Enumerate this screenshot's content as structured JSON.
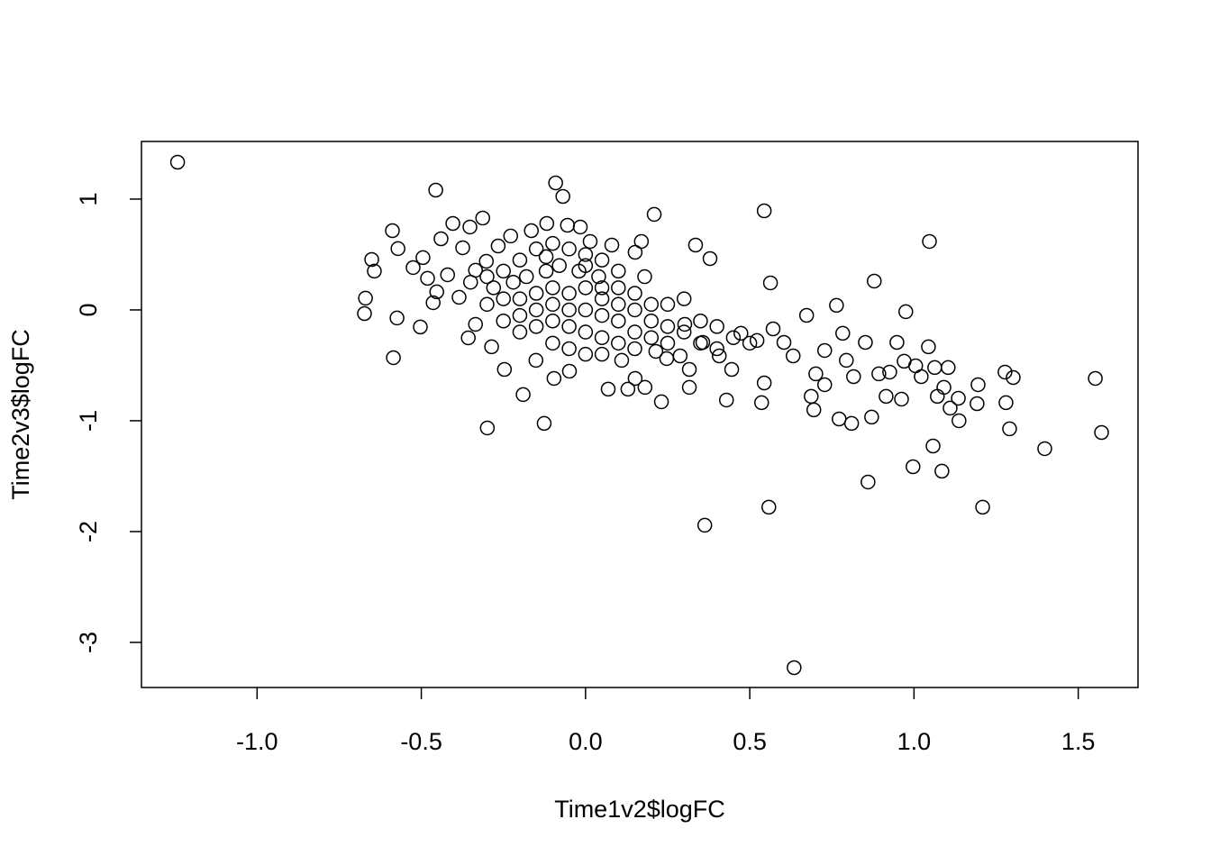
{
  "chart_data": {
    "type": "scatter",
    "xlabel": "Time1v2$logFC",
    "ylabel": "Time2v3$logFC",
    "marker": "circle",
    "color": "#000000",
    "x": [
      -1.242,
      -0.456,
      -0.091,
      -0.069,
      0.209,
      0.544,
      1.047,
      -0.588,
      -0.651,
      -0.643,
      -0.571,
      -0.67,
      -0.673,
      -0.574,
      -0.585,
      -0.503,
      -0.525,
      -0.481,
      -0.464,
      -0.453,
      -0.495,
      -0.404,
      -0.352,
      -0.313,
      -0.19,
      -0.299,
      -0.126,
      0.363,
      0.558,
      0.635,
      0.86,
      0.997,
      1.085,
      1.058,
      1.209,
      1.398,
      1.571,
      1.552,
      1.302,
      1.277,
      1.28,
      1.291,
      1.192,
      1.195,
      1.137,
      1.11,
      0.879,
      0.975,
      0.764,
      0.563,
      0.335,
      0.379,
      0.871,
      0.772,
      0.81,
      0.181,
      0.231,
      0.536,
      0.429,
      0.316,
      0.948,
      0.915,
      0.962,
      1.044,
      1.104,
      1.071,
      1.091,
      1.063,
      1.005,
      0.926,
      0.852,
      0.783,
      0.728,
      0.701,
      0.695,
      0.687,
      0.728,
      0.632,
      0.604,
      0.571,
      0.673,
      0.522,
      0.473,
      0.544,
      0.445,
      0.407,
      0.357,
      0.316,
      0.302,
      0.816,
      0.794,
      0.893,
      1.022,
      1.135,
      0.97,
      -0.44,
      -0.374,
      -0.42,
      -0.385,
      -0.357,
      -0.335,
      -0.286,
      -0.247,
      -0.151,
      -0.096,
      -0.049,
      0.069,
      0.129,
      0.151,
      0.11,
      0.247,
      0.288,
      0.214,
      0.17,
      0.151,
      0.08,
      0.014,
      -0.016,
      -0.055,
      -0.118,
      -0.165,
      -0.228,
      -0.266,
      -0.302,
      -0.335,
      -0.25,
      -0.2,
      -0.15,
      -0.1,
      -0.05,
      0,
      0.05,
      0.1,
      -0.28,
      -0.22,
      -0.18,
      -0.12,
      -0.08,
      -0.02,
      0.04,
      0.1,
      0.15,
      0.2,
      -0.3,
      -0.25,
      -0.2,
      -0.15,
      -0.1,
      -0.05,
      0,
      0.05,
      0.1,
      0.15,
      0.2,
      0.25,
      0.3,
      -0.25,
      -0.2,
      -0.15,
      -0.1,
      -0.05,
      0,
      0.05,
      0.1,
      0.15,
      0.2,
      0.25,
      -0.2,
      -0.15,
      -0.1,
      -0.05,
      0,
      0.05,
      0.1,
      0.15,
      -0.1,
      -0.05,
      0,
      0.05,
      0.35,
      0.4,
      0.45,
      0.5,
      0.35,
      0.4,
      0.3,
      0.25,
      -0.3,
      -0.35,
      0,
      0.05,
      -0.12,
      0.18
    ],
    "y": [
      1.333,
      1.081,
      1.146,
      1.024,
      0.862,
      0.894,
      0.618,
      0.715,
      0.455,
      0.35,
      0.553,
      0.106,
      -0.033,
      -0.073,
      -0.431,
      -0.154,
      0.382,
      0.285,
      0.065,
      0.163,
      0.472,
      0.78,
      0.748,
      0.829,
      -0.764,
      -1.065,
      -1.024,
      -1.943,
      -1.78,
      -3.228,
      -1.553,
      -1.415,
      -1.455,
      -1.228,
      -1.78,
      -1.252,
      -1.106,
      -0.618,
      -0.61,
      -0.561,
      -0.837,
      -1.073,
      -0.846,
      -0.675,
      -1.0,
      -0.886,
      0.26,
      -0.016,
      0.041,
      0.244,
      0.585,
      0.463,
      -0.967,
      -0.984,
      -1.024,
      -0.699,
      -0.829,
      -0.837,
      -0.813,
      -0.699,
      -0.293,
      -0.78,
      -0.805,
      -0.333,
      -0.52,
      -0.78,
      -0.699,
      -0.52,
      -0.504,
      -0.561,
      -0.293,
      -0.211,
      -0.366,
      -0.577,
      -0.902,
      -0.78,
      -0.675,
      -0.415,
      -0.293,
      -0.171,
      -0.049,
      -0.276,
      -0.211,
      -0.659,
      -0.537,
      -0.415,
      -0.293,
      -0.537,
      -0.13,
      -0.602,
      -0.455,
      -0.577,
      -0.602,
      -0.797,
      -0.463,
      0.642,
      0.561,
      0.317,
      0.114,
      -0.252,
      -0.13,
      -0.333,
      -0.537,
      -0.455,
      -0.618,
      -0.553,
      -0.715,
      -0.715,
      -0.618,
      -0.455,
      -0.439,
      -0.415,
      -0.374,
      0.618,
      0.52,
      0.585,
      0.618,
      0.748,
      0.764,
      0.78,
      0.715,
      0.667,
      0.577,
      0.439,
      0.358,
      0.35,
      0.45,
      0.55,
      0.6,
      0.55,
      0.5,
      0.45,
      0.35,
      0.2,
      0.25,
      0.3,
      0.35,
      0.4,
      0.35,
      0.3,
      0.2,
      0.15,
      0.05,
      0.05,
      0.1,
      0.1,
      0.15,
      0.2,
      0.15,
      0.2,
      0.1,
      0.05,
      0,
      -0.1,
      -0.15,
      -0.2,
      -0.1,
      -0.05,
      0,
      0.05,
      0,
      0,
      -0.05,
      -0.1,
      -0.2,
      -0.25,
      -0.3,
      -0.2,
      -0.15,
      -0.1,
      -0.15,
      -0.2,
      -0.25,
      -0.3,
      -0.35,
      -0.3,
      -0.35,
      -0.4,
      -0.4,
      -0.3,
      -0.35,
      -0.25,
      -0.3,
      -0.1,
      -0.15,
      0.1,
      0.05,
      0.3,
      0.25,
      0.4,
      0.2,
      0.48,
      0.3
    ],
    "xlim": [
      -1.352,
      1.682
    ],
    "ylim": [
      -3.407,
      1.52
    ],
    "xticks": [
      {
        "value": -1,
        "label": "-1.0"
      },
      {
        "value": -0.5,
        "label": "-0.5"
      },
      {
        "value": 0,
        "label": "0.0"
      },
      {
        "value": 0.5,
        "label": "0.5"
      },
      {
        "value": 1,
        "label": "1.0"
      },
      {
        "value": 1.5,
        "label": "1.5"
      }
    ],
    "yticks": [
      -3,
      -2,
      -1,
      0,
      1
    ]
  }
}
